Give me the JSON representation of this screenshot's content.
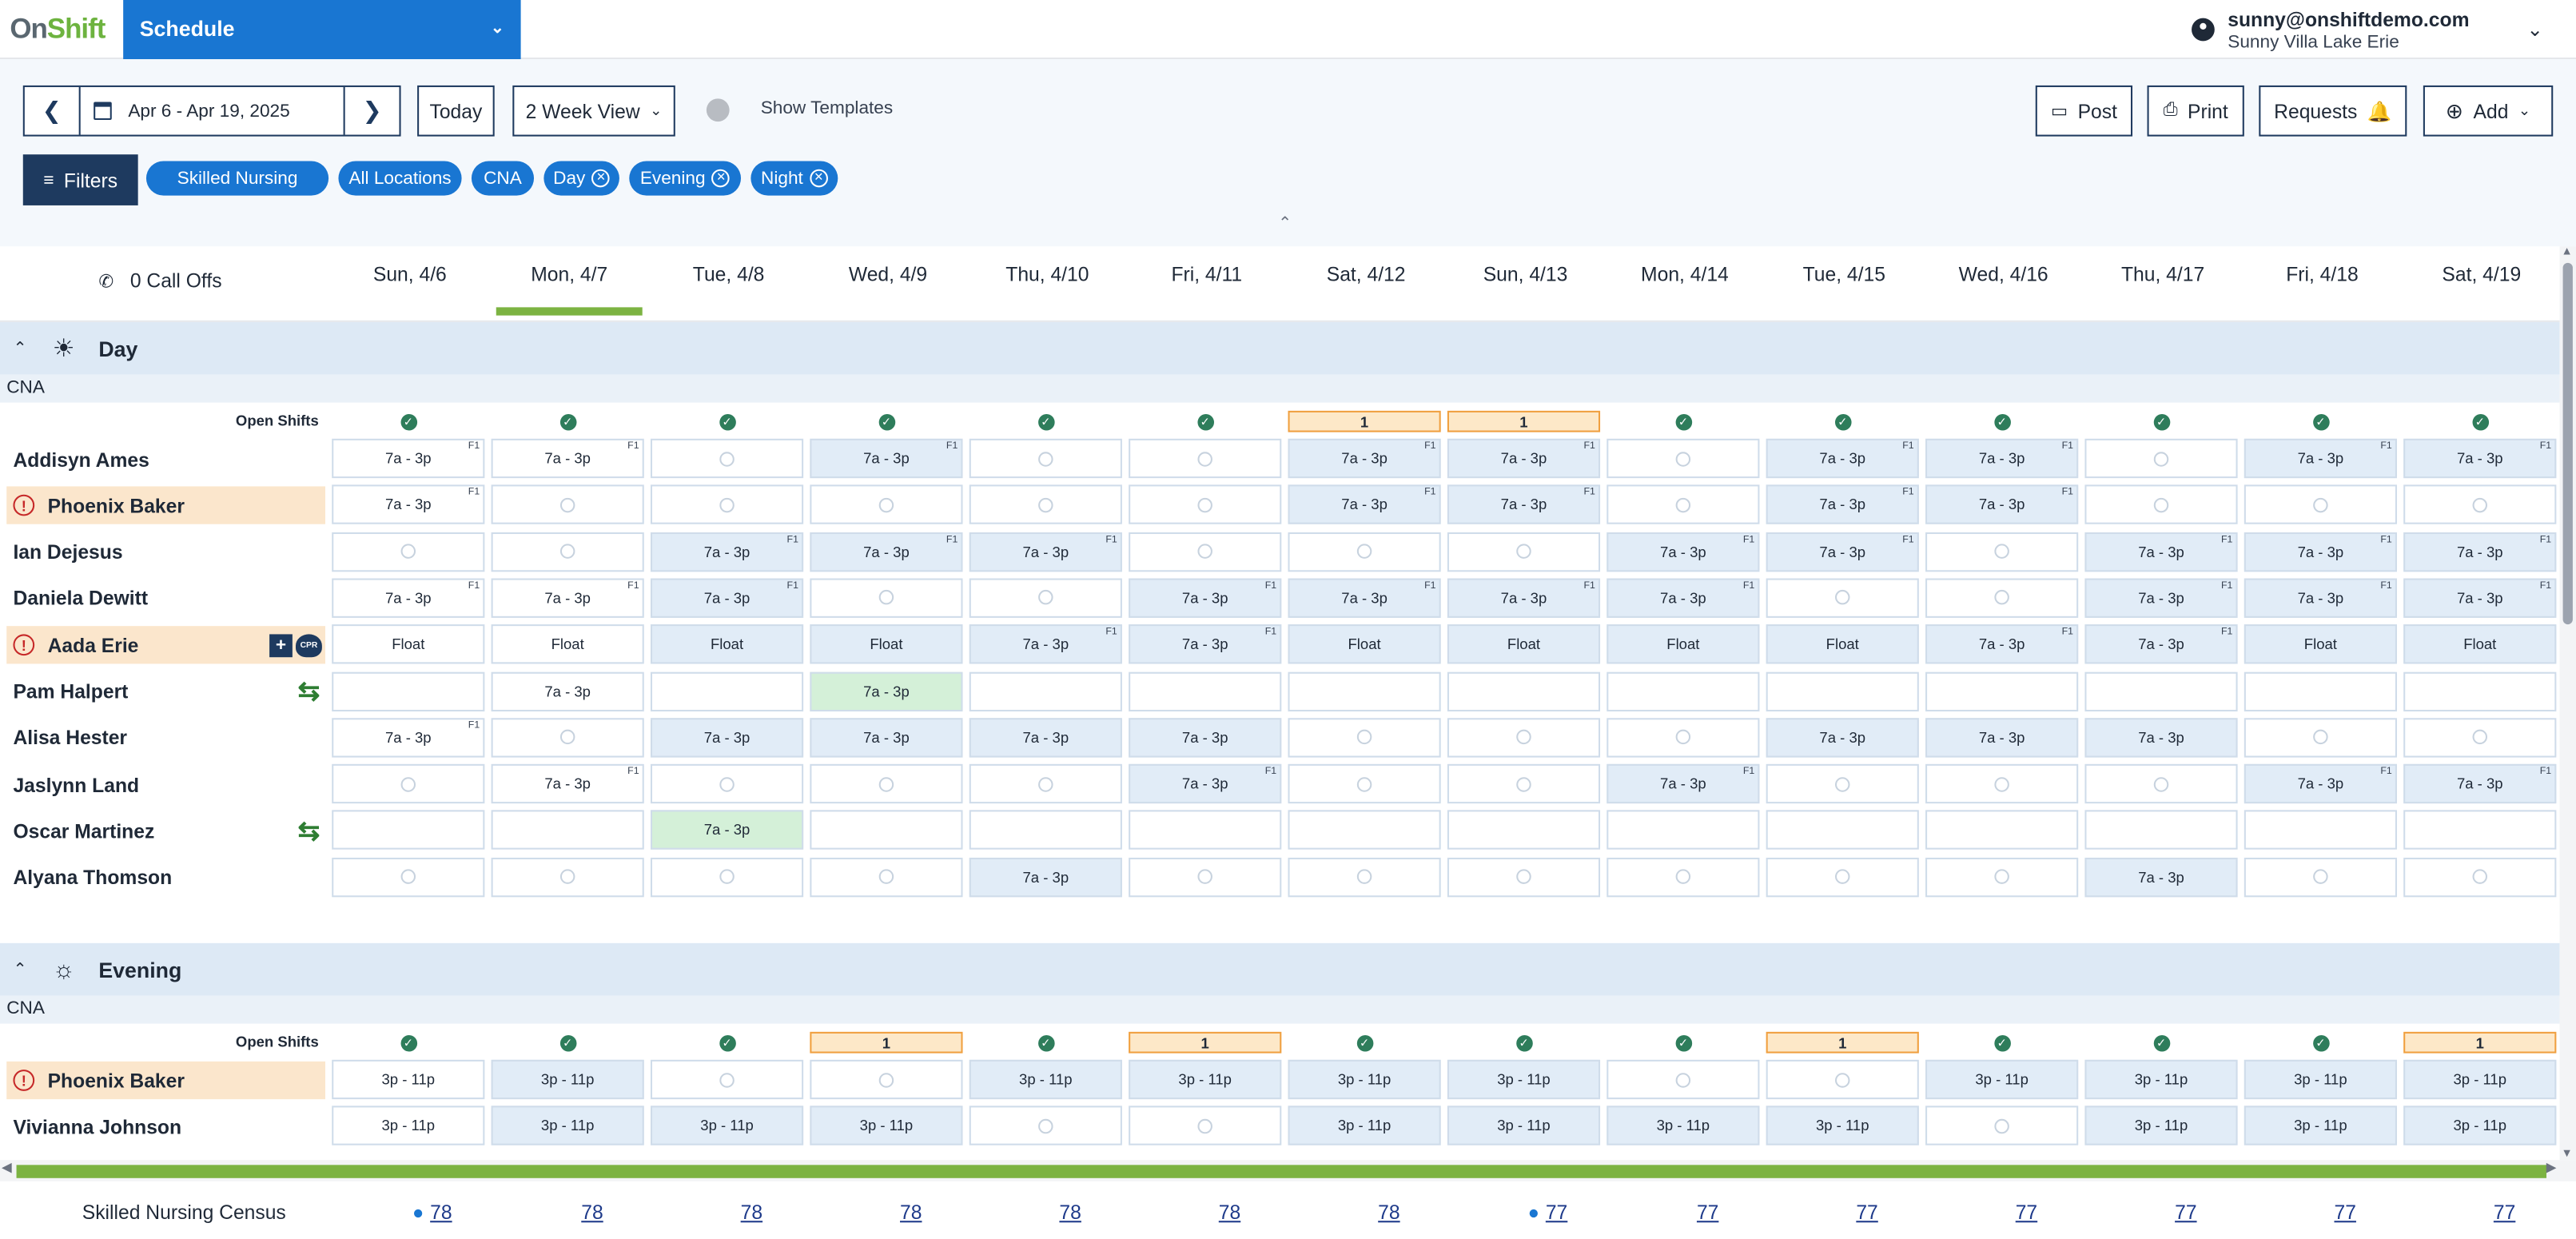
{
  "app": {
    "logo_text_1": "On",
    "logo_text_2": "Shift",
    "module": "Schedule",
    "user_email": "sunny@onshiftdemo.com",
    "user_location": "Sunny Villa Lake Erie"
  },
  "toolbar": {
    "date_range": "Apr 6 - Apr 19, 2025",
    "today": "Today",
    "view": "2 Week View",
    "show_templates": "Show Templates",
    "post": "Post",
    "print": "Print",
    "requests": "Requests",
    "add": "Add",
    "filters": "Filters"
  },
  "chips": [
    "Skilled Nursing",
    "All Locations",
    "CNA",
    "Day",
    "Evening",
    "Night"
  ],
  "call_offs": "0 Call Offs",
  "days": [
    "Sun, 4/6",
    "Mon, 4/7",
    "Tue, 4/8",
    "Wed, 4/9",
    "Thu, 4/10",
    "Fri, 4/11",
    "Sat, 4/12",
    "Sun, 4/13",
    "Mon, 4/14",
    "Tue, 4/15",
    "Wed, 4/16",
    "Thu, 4/17",
    "Fri, 4/18",
    "Sat, 4/19"
  ],
  "open_shifts_label": "Open Shifts",
  "sections": [
    {
      "name": "Day",
      "subgroup": "CNA",
      "open": [
        "",
        "",
        "",
        "",
        "",
        "",
        "1",
        "1",
        "",
        "",
        "",
        "",
        "",
        ""
      ],
      "employees": [
        {
          "name": "Addisyn Ames",
          "warn": false,
          "badges": [],
          "cells": [
            "7a - 3p|w|F1",
            "7a - 3p|w|F1",
            "+",
            "7a - 3p|f|F1",
            "+",
            "+",
            "7a - 3p|f|F1",
            "7a - 3p|f|F1",
            "+",
            "7a - 3p|f|F1",
            "7a - 3p|f|F1",
            "+",
            "7a - 3p|f|F1",
            "7a - 3p|f|F1"
          ]
        },
        {
          "name": "Phoenix Baker",
          "warn": true,
          "badges": [],
          "cells": [
            "7a - 3p|w|F1",
            "+",
            "+",
            "+",
            "+",
            "+",
            "7a - 3p|f|F1",
            "7a - 3p|f|F1",
            "+",
            "7a - 3p|f|F1",
            "7a - 3p|f|F1",
            "+",
            "+",
            "+"
          ]
        },
        {
          "name": "Ian Dejesus",
          "warn": false,
          "badges": [],
          "cells": [
            "+",
            "+",
            "7a - 3p|f|F1",
            "7a - 3p|f|F1",
            "7a - 3p|f|F1",
            "+",
            "+",
            "+",
            "7a - 3p|f|F1",
            "7a - 3p|f|F1",
            "+",
            "7a - 3p|f|F1",
            "7a - 3p|f|F1",
            "7a - 3p|f|F1"
          ]
        },
        {
          "name": "Daniela Dewitt",
          "warn": false,
          "badges": [],
          "cells": [
            "7a - 3p|w|F1",
            "7a - 3p|w|F1",
            "7a - 3p|f|F1",
            "+",
            "+",
            "7a - 3p|f|F1",
            "7a - 3p|f|F1",
            "7a - 3p|f|F1",
            "7a - 3p|f|F1",
            "+",
            "+",
            "7a - 3p|f|F1",
            "7a - 3p|f|F1",
            "7a - 3p|f|F1"
          ]
        },
        {
          "name": "Aada Erie",
          "warn": true,
          "badges": [
            "plus",
            "cpr"
          ],
          "cells": [
            "Float|w|",
            "Float|w|",
            "Float|f|",
            "Float|f|",
            "7a - 3p|f|F1",
            "7a - 3p|f|F1",
            "Float|f|",
            "Float|f|",
            "Float|f|",
            "Float|f|",
            "7a - 3p|f|F1",
            "7a - 3p|f|F1",
            "Float|f|",
            "Float|f|"
          ]
        },
        {
          "name": "Pam Halpert",
          "warn": false,
          "badges": [
            "swap"
          ],
          "cells": [
            "|w|",
            "7a - 3p|w|",
            "|w|",
            "7a - 3p|g|",
            "|w|",
            "|w|",
            "|w|",
            "|w|",
            "|w|",
            "|w|",
            "|w|",
            "|w|",
            "|w|",
            "|w|"
          ]
        },
        {
          "name": "Alisa Hester",
          "warn": false,
          "badges": [],
          "cells": [
            "7a - 3p|w|F1",
            "+",
            "7a - 3p|f|",
            "7a - 3p|f|",
            "7a - 3p|f|",
            "7a - 3p|f|",
            "+",
            "+",
            "+",
            "7a - 3p|f|",
            "7a - 3p|f|",
            "7a - 3p|f|",
            "+",
            "+"
          ]
        },
        {
          "name": "Jaslynn Land",
          "warn": false,
          "badges": [],
          "cells": [
            "+",
            "7a - 3p|w|F1",
            "+",
            "+",
            "+",
            "7a - 3p|f|F1",
            "+",
            "+",
            "7a - 3p|f|F1",
            "+",
            "+",
            "+",
            "7a - 3p|f|F1",
            "7a - 3p|f|F1"
          ]
        },
        {
          "name": "Oscar Martinez",
          "warn": false,
          "badges": [
            "swap"
          ],
          "cells": [
            "|w|",
            "|w|",
            "7a - 3p|g|",
            "|w|",
            "|w|",
            "|w|",
            "|w|",
            "|w|",
            "|w|",
            "|w|",
            "|w|",
            "|w|",
            "|w|",
            "|w|"
          ]
        },
        {
          "name": "Alyana Thomson",
          "warn": false,
          "badges": [],
          "cells": [
            "+",
            "+",
            "+",
            "+",
            "7a - 3p|f|",
            "+",
            "+",
            "+",
            "+",
            "+",
            "+",
            "7a - 3p|f|",
            "+",
            "+"
          ]
        }
      ]
    },
    {
      "name": "Evening",
      "subgroup": "CNA",
      "open": [
        "",
        "",
        "",
        "1",
        "",
        "1",
        "",
        "",
        "",
        "1",
        "",
        "",
        "",
        "1"
      ],
      "employees": [
        {
          "name": "Phoenix Baker",
          "warn": true,
          "badges": [],
          "cells": [
            "3p - 11p|w|",
            "3p - 11p|f|",
            "+",
            "+",
            "3p - 11p|f|",
            "3p - 11p|f|",
            "3p - 11p|f|",
            "3p - 11p|f|",
            "+",
            "+",
            "3p - 11p|f|",
            "3p - 11p|f|",
            "3p - 11p|f|",
            "3p - 11p|f|"
          ]
        },
        {
          "name": "Vivianna Johnson",
          "warn": false,
          "badges": [],
          "cells": [
            "3p - 11p|w|",
            "3p - 11p|f|",
            "3p - 11p|f|",
            "3p - 11p|f|",
            "+",
            "+",
            "3p - 11p|f|",
            "3p - 11p|f|",
            "3p - 11p|f|",
            "3p - 11p|f|",
            "+",
            "3p - 11p|f|",
            "3p - 11p|f|",
            "3p - 11p|f|"
          ]
        }
      ]
    }
  ],
  "census": {
    "label": "Skilled Nursing Census",
    "values": [
      "78",
      "78",
      "78",
      "78",
      "78",
      "78",
      "78",
      "77",
      "77",
      "77",
      "77",
      "77",
      "77",
      "77"
    ],
    "dots": [
      true,
      false,
      false,
      false,
      false,
      false,
      false,
      true,
      false,
      false,
      false,
      false,
      false,
      false
    ]
  }
}
